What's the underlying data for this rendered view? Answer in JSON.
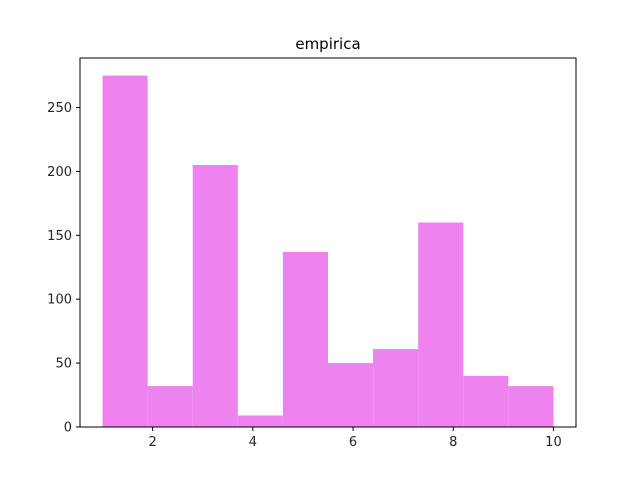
{
  "chart_data": {
    "type": "bar",
    "title": "empirica",
    "xlabel": "",
    "ylabel": "",
    "bins": [
      {
        "start": 1.0,
        "end": 1.9,
        "value": 275
      },
      {
        "start": 1.9,
        "end": 2.8,
        "value": 32
      },
      {
        "start": 2.8,
        "end": 3.7,
        "value": 205
      },
      {
        "start": 3.7,
        "end": 4.6,
        "value": 9
      },
      {
        "start": 4.6,
        "end": 5.5,
        "value": 137
      },
      {
        "start": 5.5,
        "end": 6.4,
        "value": 50
      },
      {
        "start": 6.4,
        "end": 7.3,
        "value": 61
      },
      {
        "start": 7.3,
        "end": 8.2,
        "value": 160
      },
      {
        "start": 8.2,
        "end": 9.1,
        "value": 40
      },
      {
        "start": 9.1,
        "end": 10.0,
        "value": 32
      }
    ],
    "xlim": [
      0.55,
      10.45
    ],
    "ylim": [
      0,
      288.75
    ],
    "xticks": [
      2,
      4,
      6,
      8,
      10
    ],
    "yticks": [
      0,
      50,
      100,
      150,
      200,
      250
    ],
    "bar_color": "#ee82ee",
    "grid": false
  }
}
